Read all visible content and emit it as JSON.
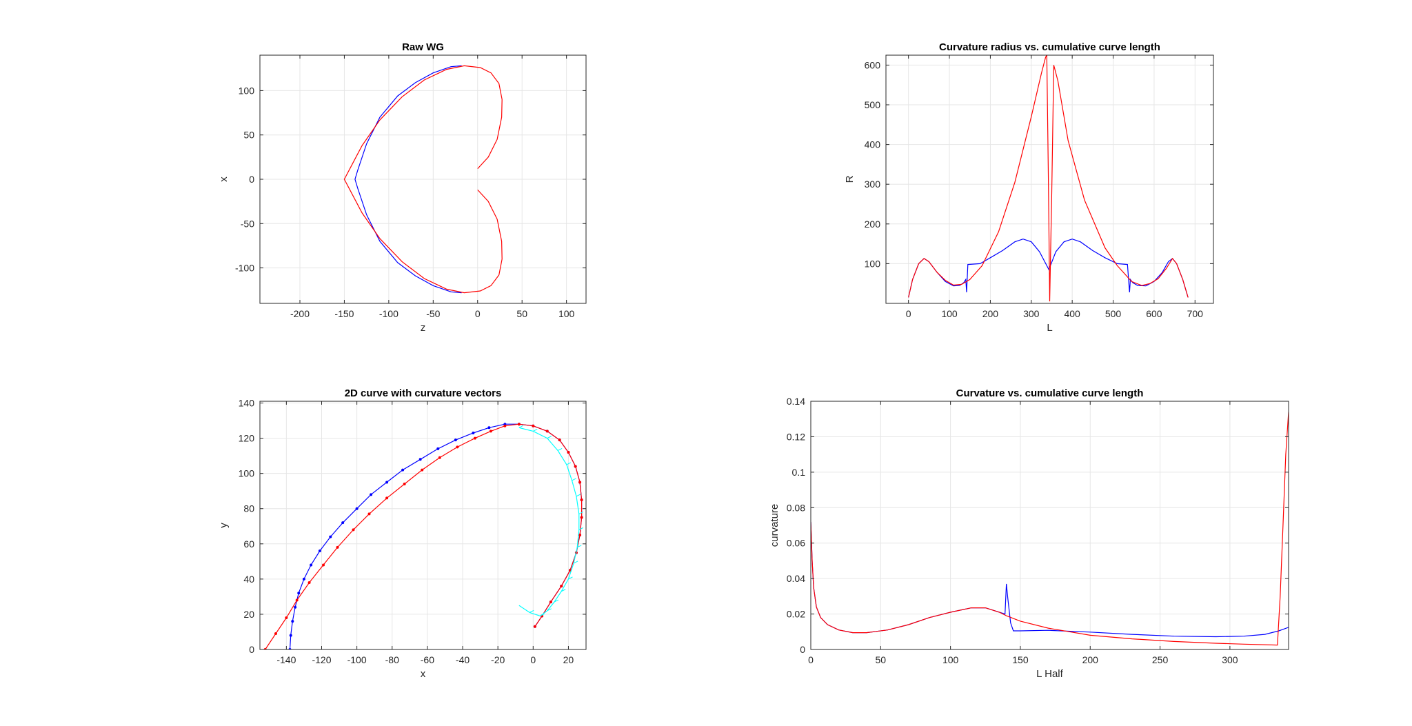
{
  "chart_data": [
    {
      "type": "line",
      "title": "Raw WG",
      "xlabel": "z",
      "ylabel": "x",
      "xlim": [
        -245,
        122
      ],
      "ylim": [
        -140,
        140
      ],
      "xticks": [
        -200,
        -150,
        -100,
        -50,
        0,
        50,
        100
      ],
      "yticks": [
        -100,
        -50,
        0,
        50,
        100
      ],
      "grid": true,
      "series": [
        {
          "name": "blue",
          "color": "#0000ff",
          "x": [
            -18,
            -30,
            -50,
            -70,
            -90,
            -110,
            -125,
            -135,
            -138,
            -135,
            -125,
            -110,
            -90,
            -70,
            -50,
            -30,
            -18
          ],
          "y": [
            128,
            127,
            120,
            109,
            94,
            70,
            40,
            10,
            0,
            -10,
            -40,
            -70,
            -94,
            -109,
            -120,
            -127,
            -128
          ]
        },
        {
          "name": "red",
          "color": "#ff0000",
          "x": [
            0,
            12,
            22,
            27,
            27.5,
            24,
            15,
            3,
            -15,
            -35,
            -60,
            -85,
            -110,
            -130,
            -150,
            -130,
            -110,
            -85,
            -60,
            -35,
            -15,
            3,
            15,
            24,
            27.5,
            27,
            22,
            12,
            0
          ],
          "y": [
            12,
            25,
            45,
            70,
            90,
            108,
            120,
            126,
            128,
            124,
            112,
            93,
            67,
            38,
            0,
            -38,
            -67,
            -93,
            -112,
            -124,
            -128,
            -126,
            -120,
            -108,
            -90,
            -70,
            -45,
            -25,
            -12
          ]
        }
      ]
    },
    {
      "type": "line",
      "title": "Curvature radius vs. cumulative curve length",
      "xlabel": "L",
      "ylabel": "R",
      "xlim": [
        -55,
        745
      ],
      "ylim": [
        0,
        625
      ],
      "xticks": [
        0,
        100,
        200,
        300,
        400,
        500,
        600,
        700
      ],
      "yticks": [
        100,
        200,
        300,
        400,
        500,
        600
      ],
      "grid": true,
      "series": [
        {
          "name": "blue",
          "color": "#0000ff",
          "x": [
            0,
            10,
            25,
            38,
            50,
            70,
            90,
            110,
            125,
            135,
            140,
            142,
            145,
            175,
            200,
            230,
            260,
            280,
            300,
            320,
            343,
            360,
            380,
            400,
            420,
            450,
            480,
            510,
            535,
            540,
            542,
            548,
            560,
            580,
            600,
            620,
            635,
            645,
            655,
            670,
            683
          ],
          "y": [
            15,
            60,
            100,
            113,
            105,
            78,
            55,
            44,
            45,
            52,
            60,
            28,
            98,
            100,
            115,
            133,
            155,
            162,
            155,
            130,
            85,
            130,
            155,
            162,
            155,
            133,
            115,
            100,
            98,
            28,
            60,
            52,
            45,
            44,
            55,
            78,
            105,
            113,
            100,
            60,
            15
          ]
        },
        {
          "name": "red",
          "color": "#ff0000",
          "x": [
            0,
            10,
            25,
            38,
            50,
            70,
            90,
            110,
            130,
            150,
            180,
            220,
            260,
            300,
            325,
            335,
            338,
            342,
            345,
            350,
            355,
            365,
            390,
            430,
            480,
            510,
            545,
            570,
            590,
            610,
            630,
            645,
            655,
            670,
            683
          ],
          "y": [
            15,
            60,
            100,
            113,
            105,
            78,
            58,
            46,
            48,
            60,
            95,
            180,
            305,
            470,
            580,
            620,
            625,
            300,
            5,
            280,
            600,
            560,
            410,
            260,
            140,
            95,
            55,
            45,
            50,
            62,
            88,
            113,
            100,
            60,
            15
          ]
        }
      ]
    },
    {
      "type": "line",
      "title": "2D curve with curvature vectors",
      "xlabel": "x",
      "ylabel": "y",
      "xlim": [
        -155,
        30
      ],
      "ylim": [
        0,
        141
      ],
      "xticks": [
        -140,
        -120,
        -100,
        -80,
        -60,
        -40,
        -20,
        0,
        20
      ],
      "yticks": [
        0,
        20,
        40,
        60,
        80,
        100,
        120,
        140
      ],
      "grid": true,
      "series": [
        {
          "name": "blue",
          "color": "#0000ff",
          "marker": "dot",
          "x": [
            -138,
            -137.5,
            -136.5,
            -135,
            -133,
            -130,
            -126,
            -121,
            -115,
            -108,
            -100,
            -92,
            -83,
            -74,
            -64,
            -54,
            -44,
            -34,
            -25,
            -16,
            -8,
            0,
            8,
            15,
            20,
            24,
            26.5,
            27.5,
            27.5,
            26.5,
            24.5,
            21,
            16,
            10,
            5,
            1
          ],
          "y": [
            0,
            8,
            16,
            24,
            32,
            40,
            48,
            56,
            64,
            72,
            80,
            88,
            95,
            102,
            108,
            114,
            119,
            123,
            126,
            128,
            128,
            127,
            124,
            119,
            112,
            104,
            95,
            85,
            75,
            65,
            55,
            45,
            36,
            27,
            19,
            13
          ]
        },
        {
          "name": "red",
          "color": "#ff0000",
          "marker": "dot",
          "x": [
            -152,
            -146,
            -140,
            -134,
            -127,
            -119,
            -111,
            -102,
            -93,
            -83,
            -73,
            -63,
            -53,
            -43,
            -33,
            -24,
            -16,
            -8,
            0,
            8,
            15,
            20,
            24,
            26.5,
            27.5,
            27.5,
            26.5,
            24.5,
            21,
            16,
            10,
            5,
            1
          ],
          "y": [
            0,
            9,
            18,
            28,
            38,
            48,
            58,
            68,
            77,
            86,
            94,
            102,
            109,
            115,
            120,
            124,
            127,
            128,
            127,
            124,
            119,
            112,
            104,
            95,
            85,
            75,
            65,
            55,
            45,
            36,
            27,
            19,
            13
          ]
        },
        {
          "name": "curvature-vectors",
          "color": "#00ffff",
          "x": [
            -8,
            0,
            8,
            14,
            19,
            22,
            24.5,
            26,
            26,
            25,
            23,
            20,
            16,
            12,
            8,
            4,
            -2,
            -8
          ],
          "y": [
            126,
            124,
            120,
            113,
            105,
            96,
            87,
            77,
            68,
            58,
            49,
            40,
            33,
            27,
            22,
            19,
            21,
            25
          ]
        }
      ]
    },
    {
      "type": "line",
      "title": "Curvature vs. cumulative curve length",
      "xlabel": "L Half",
      "ylabel": "curvature",
      "xlim": [
        0,
        342
      ],
      "ylim": [
        0,
        0.14
      ],
      "xticks": [
        0,
        50,
        100,
        150,
        200,
        250,
        300
      ],
      "yticks": [
        0,
        0.02,
        0.04,
        0.06,
        0.08,
        0.1,
        0.12,
        0.14
      ],
      "grid": true,
      "series": [
        {
          "name": "blue",
          "color": "#0000ff",
          "x": [
            0,
            1,
            2,
            4,
            7,
            12,
            20,
            30,
            40,
            55,
            70,
            85,
            100,
            115,
            125,
            135,
            139,
            140,
            141,
            143,
            145,
            150,
            170,
            200,
            230,
            260,
            290,
            310,
            325,
            335,
            342
          ],
          "y": [
            0.072,
            0.05,
            0.035,
            0.024,
            0.018,
            0.014,
            0.011,
            0.0095,
            0.0095,
            0.011,
            0.014,
            0.018,
            0.021,
            0.0235,
            0.0235,
            0.021,
            0.02,
            0.037,
            0.029,
            0.015,
            0.0105,
            0.0105,
            0.0108,
            0.0098,
            0.0085,
            0.0075,
            0.0072,
            0.0075,
            0.0085,
            0.0105,
            0.0125
          ]
        },
        {
          "name": "red",
          "color": "#ff0000",
          "x": [
            0,
            1,
            2,
            4,
            7,
            12,
            20,
            30,
            40,
            55,
            70,
            85,
            100,
            115,
            125,
            135,
            140,
            150,
            170,
            200,
            230,
            260,
            290,
            310,
            334,
            336,
            338,
            340,
            342
          ],
          "y": [
            0.072,
            0.05,
            0.035,
            0.024,
            0.018,
            0.014,
            0.011,
            0.0095,
            0.0095,
            0.011,
            0.014,
            0.018,
            0.021,
            0.0235,
            0.0235,
            0.021,
            0.019,
            0.016,
            0.012,
            0.008,
            0.006,
            0.0045,
            0.0035,
            0.003,
            0.0025,
            0.03,
            0.07,
            0.11,
            0.134
          ]
        }
      ]
    }
  ]
}
